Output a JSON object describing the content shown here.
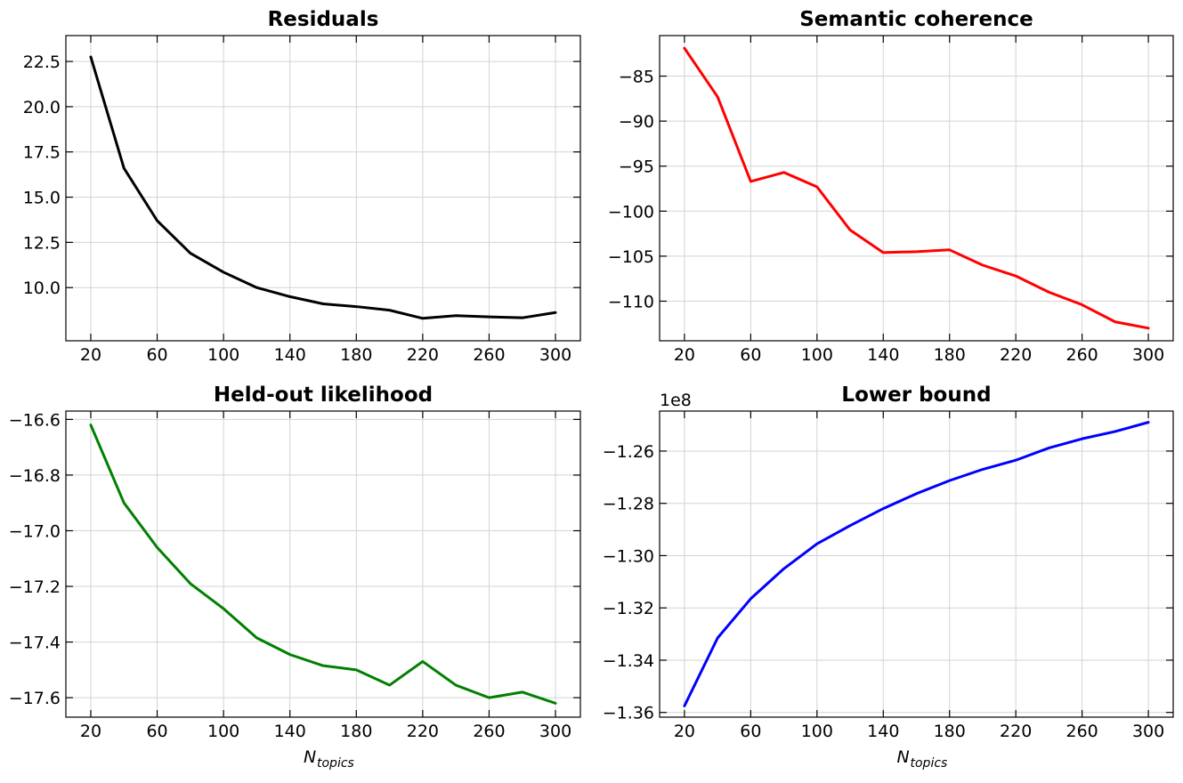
{
  "chart_data": [
    {
      "type": "line",
      "title": "Residuals",
      "xlabel": "",
      "ylabel": "",
      "color": "#000000",
      "x": [
        20,
        40,
        60,
        80,
        100,
        120,
        140,
        160,
        180,
        200,
        220,
        240,
        260,
        280,
        300
      ],
      "y": [
        22.75,
        16.6,
        13.7,
        11.9,
        10.85,
        10.0,
        9.5,
        9.1,
        8.95,
        8.75,
        8.3,
        8.45,
        8.38,
        8.33,
        8.62
      ],
      "xticks": [
        20,
        60,
        100,
        140,
        180,
        220,
        260,
        300
      ],
      "xtick_labels": [
        "20",
        "60",
        "100",
        "140",
        "180",
        "220",
        "260",
        "300"
      ],
      "xlim": [
        5,
        315
      ],
      "yticks": [
        10.0,
        12.5,
        15.0,
        17.5,
        20.0,
        22.5
      ],
      "ytick_labels": [
        "10.0",
        "12.5",
        "15.0",
        "17.5",
        "20.0",
        "22.5"
      ],
      "ylim": [
        7.06,
        23.93
      ],
      "offset_label": "",
      "grid": true
    },
    {
      "type": "line",
      "title": "Semantic coherence",
      "xlabel": "",
      "ylabel": "",
      "color": "#ff0000",
      "x": [
        20,
        40,
        60,
        80,
        100,
        120,
        140,
        160,
        180,
        200,
        220,
        240,
        260,
        280,
        300
      ],
      "y": [
        -81.9,
        -87.3,
        -96.7,
        -95.7,
        -97.3,
        -102.1,
        -104.6,
        -104.5,
        -104.3,
        -106.0,
        -107.2,
        -109.0,
        -110.4,
        -112.3,
        -113.0
      ],
      "xticks": [
        20,
        60,
        100,
        140,
        180,
        220,
        260,
        300
      ],
      "xtick_labels": [
        "20",
        "60",
        "100",
        "140",
        "180",
        "220",
        "260",
        "300"
      ],
      "xlim": [
        5,
        315
      ],
      "yticks": [
        -110,
        -105,
        -100,
        -95,
        -90,
        -85
      ],
      "ytick_labels": [
        "−110",
        "−105",
        "−100",
        "−95",
        "−90",
        "−85"
      ],
      "ylim": [
        -114.4,
        -80.5
      ],
      "offset_label": "",
      "grid": true
    },
    {
      "type": "line",
      "title": "Held-out likelihood",
      "xlabel": "N",
      "xlabel_sub": "topics",
      "ylabel": "",
      "color": "#008000",
      "x": [
        20,
        40,
        60,
        80,
        100,
        120,
        140,
        160,
        180,
        200,
        220,
        240,
        260,
        280,
        300
      ],
      "y": [
        -16.62,
        -16.9,
        -17.06,
        -17.19,
        -17.28,
        -17.385,
        -17.445,
        -17.485,
        -17.5,
        -17.555,
        -17.47,
        -17.555,
        -17.6,
        -17.58,
        -17.62
      ],
      "xticks": [
        20,
        60,
        100,
        140,
        180,
        220,
        260,
        300
      ],
      "xtick_labels": [
        "20",
        "60",
        "100",
        "140",
        "180",
        "220",
        "260",
        "300"
      ],
      "xlim": [
        5,
        315
      ],
      "yticks": [
        -17.6,
        -17.4,
        -17.2,
        -17.0,
        -16.8,
        -16.6
      ],
      "ytick_labels": [
        "−17.6",
        "−17.4",
        "−17.2",
        "−17.0",
        "−16.8",
        "−16.6"
      ],
      "ylim": [
        -17.67,
        -16.57
      ],
      "offset_label": "",
      "grid": true
    },
    {
      "type": "line",
      "title": "Lower bound",
      "xlabel": "N",
      "xlabel_sub": "topics",
      "ylabel": "",
      "color": "#0000ff",
      "x": [
        20,
        40,
        60,
        80,
        100,
        120,
        140,
        160,
        180,
        200,
        220,
        240,
        260,
        280,
        300
      ],
      "y": [
        -1.3575,
        -1.3315,
        -1.3165,
        -1.305,
        -1.2955,
        -1.2885,
        -1.282,
        -1.2763,
        -1.2713,
        -1.267,
        -1.2635,
        -1.2588,
        -1.2553,
        -1.2525,
        -1.249
      ],
      "xticks": [
        20,
        60,
        100,
        140,
        180,
        220,
        260,
        300
      ],
      "xtick_labels": [
        "20",
        "60",
        "100",
        "140",
        "180",
        "220",
        "260",
        "300"
      ],
      "xlim": [
        5,
        315
      ],
      "yticks": [
        -1.36,
        -1.34,
        -1.32,
        -1.3,
        -1.28,
        -1.26
      ],
      "ytick_labels": [
        "−1.36",
        "−1.34",
        "−1.32",
        "−1.30",
        "−1.28",
        "−1.26"
      ],
      "ylim": [
        -1.3618,
        -1.2447
      ],
      "offset_label": "1e8",
      "grid": true
    }
  ]
}
